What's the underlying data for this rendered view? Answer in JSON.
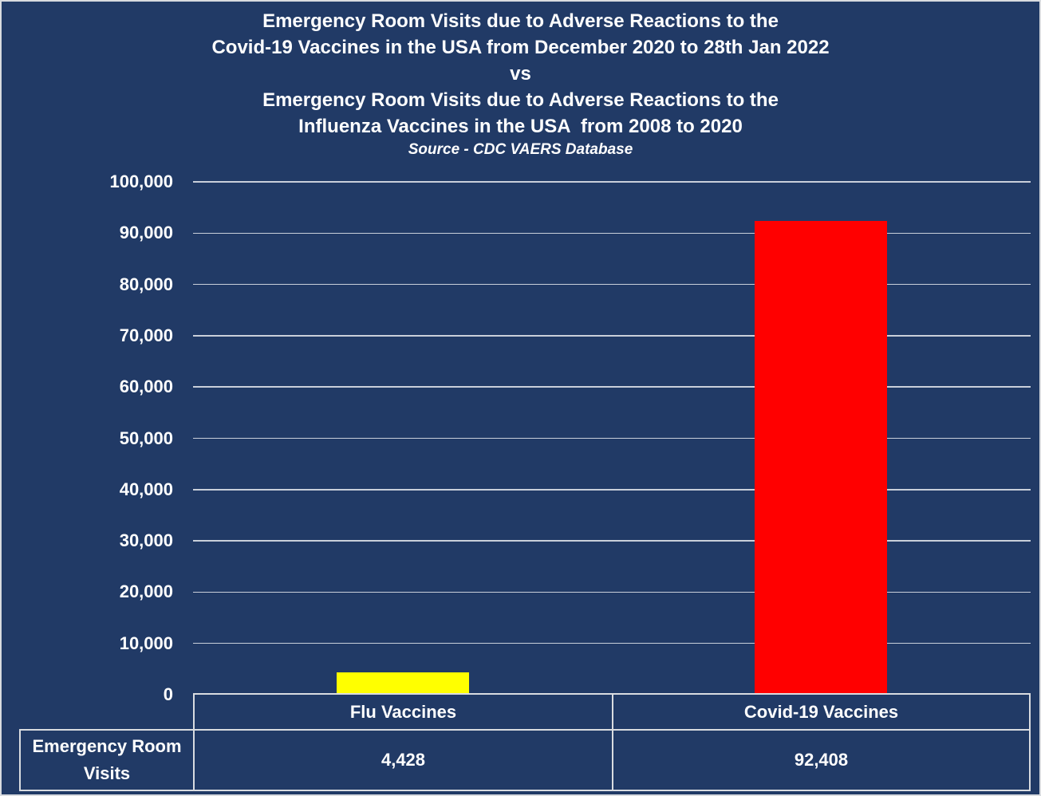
{
  "chart_data": {
    "type": "bar",
    "title_lines": [
      "Emergency Room Visits due to Adverse Reactions to the",
      "Covid-19 Vaccines in the USA from December 2020 to 28th Jan 2022",
      "vs",
      "Emergency Room Visits due to Adverse Reactions to the",
      "Influenza Vaccines in the USA  from 2008 to 2020"
    ],
    "source": "Source - CDC VAERS Database",
    "categories": [
      "Flu Vaccines",
      "Covid-19 Vaccines"
    ],
    "values": [
      4428,
      92408
    ],
    "value_labels": [
      "4,428",
      "92,408"
    ],
    "bar_colors": [
      "#FFFF00",
      "#FF0000"
    ],
    "xlabel": "",
    "ylabel": "",
    "ylim": [
      0,
      100000
    ],
    "ytick_step": 10000,
    "ytick_labels": [
      "0",
      "10,000",
      "20,000",
      "30,000",
      "40,000",
      "50,000",
      "60,000",
      "70,000",
      "80,000",
      "90,000",
      "100,000"
    ],
    "grid": true,
    "legend_position": "none",
    "table_row_label": "Emergency Room Visits"
  },
  "colors": {
    "background": "#213A66",
    "grid_line": "#C9CFDA",
    "table_border": "#D9DCE0",
    "text": "#FFFFFF",
    "flu_bar": "#FFFF00",
    "covid_bar": "#FF0000"
  }
}
